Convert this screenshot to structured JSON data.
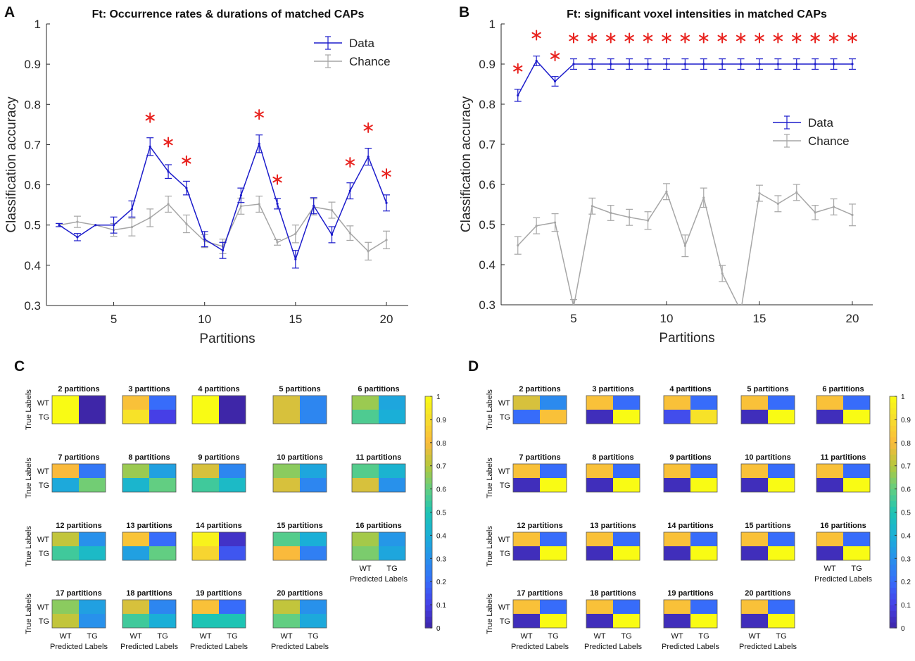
{
  "colors": {
    "data": "#1c1ccb",
    "chance": "#a6a6a6",
    "star": "#e8221e",
    "axis": "#262626"
  },
  "chart_data": [
    {
      "panel": "A",
      "type": "line",
      "title": "Ft: Occurrence rates & durations of matched CAPs",
      "xlabel": "Partitions",
      "ylabel": "Classification accuracy",
      "xlim": [
        1.3,
        21.2
      ],
      "ylim": [
        0.3,
        1.0
      ],
      "xticks": [
        5,
        10,
        15,
        20
      ],
      "yticks": [
        0.3,
        0.4,
        0.5,
        0.6,
        0.7,
        0.8,
        0.9,
        1
      ],
      "ytick_labels": [
        "0.3",
        "0.4",
        "0.5",
        "0.6",
        "0.7",
        "0.8",
        "0.9",
        "1"
      ],
      "legend_position": "top-right",
      "x": [
        2,
        3,
        4,
        5,
        6,
        7,
        8,
        9,
        10,
        11,
        12,
        13,
        14,
        15,
        16,
        17,
        18,
        19,
        20
      ],
      "series": [
        {
          "name": "Data",
          "values": [
            0.5,
            0.47,
            0.5,
            0.5,
            0.54,
            0.695,
            0.633,
            0.592,
            0.465,
            0.437,
            0.574,
            0.702,
            0.553,
            0.415,
            0.548,
            0.476,
            0.585,
            0.67,
            0.555
          ],
          "errors": [
            0.004,
            0.009,
            0.0,
            0.02,
            0.02,
            0.022,
            0.017,
            0.017,
            0.019,
            0.02,
            0.018,
            0.022,
            0.013,
            0.022,
            0.02,
            0.02,
            0.02,
            0.021,
            0.02
          ]
        },
        {
          "name": "Chance",
          "values": [
            0.5,
            0.508,
            0.5,
            0.488,
            0.495,
            0.518,
            0.552,
            0.503,
            0.46,
            0.447,
            0.547,
            0.552,
            0.457,
            0.478,
            0.545,
            0.537,
            0.48,
            0.435,
            0.463
          ],
          "errors": [
            0.004,
            0.014,
            0.0,
            0.016,
            0.022,
            0.022,
            0.02,
            0.022,
            0.016,
            0.018,
            0.02,
            0.02,
            0.007,
            0.022,
            0.02,
            0.02,
            0.018,
            0.022,
            0.022
          ]
        }
      ],
      "significance_stars": [
        {
          "x": 7,
          "y": 0.767
        },
        {
          "x": 8,
          "y": 0.706
        },
        {
          "x": 9,
          "y": 0.66
        },
        {
          "x": 13,
          "y": 0.775
        },
        {
          "x": 14,
          "y": 0.613
        },
        {
          "x": 18,
          "y": 0.656
        },
        {
          "x": 19,
          "y": 0.742
        },
        {
          "x": 20,
          "y": 0.628
        }
      ]
    },
    {
      "panel": "B",
      "type": "line",
      "title": "Ft: significant voxel intensities in matched CAPs",
      "xlabel": "Partitions",
      "ylabel": "Classification accuracy",
      "xlim": [
        1.1,
        21.1
      ],
      "ylim": [
        0.3,
        1.0
      ],
      "xticks": [
        5,
        10,
        15,
        20
      ],
      "yticks": [
        0.3,
        0.4,
        0.5,
        0.6,
        0.7,
        0.8,
        0.9,
        1
      ],
      "ytick_labels": [
        "0.3",
        "0.4",
        "0.5",
        "0.6",
        "0.7",
        "0.8",
        "0.9",
        "1"
      ],
      "legend_position": "center-right",
      "x": [
        2,
        3,
        4,
        5,
        6,
        7,
        8,
        9,
        10,
        11,
        12,
        13,
        14,
        15,
        16,
        17,
        18,
        19,
        20
      ],
      "series": [
        {
          "name": "Data",
          "values": [
            0.822,
            0.908,
            0.857,
            0.9,
            0.9,
            0.9,
            0.9,
            0.9,
            0.9,
            0.9,
            0.9,
            0.9,
            0.9,
            0.9,
            0.9,
            0.9,
            0.9,
            0.9,
            0.9
          ],
          "errors": [
            0.015,
            0.012,
            0.012,
            0.013,
            0.013,
            0.013,
            0.013,
            0.013,
            0.013,
            0.013,
            0.013,
            0.013,
            0.013,
            0.013,
            0.013,
            0.013,
            0.013,
            0.013,
            0.013
          ]
        },
        {
          "name": "Chance",
          "values": [
            0.448,
            0.497,
            0.505,
            0.295,
            0.546,
            0.529,
            0.518,
            0.51,
            0.582,
            0.447,
            0.567,
            0.378,
            0.285,
            0.578,
            0.552,
            0.58,
            0.53,
            0.544,
            0.524
          ],
          "errors": [
            0.022,
            0.02,
            0.022,
            0.018,
            0.02,
            0.019,
            0.02,
            0.022,
            0.02,
            0.027,
            0.024,
            0.02,
            0.0,
            0.02,
            0.02,
            0.02,
            0.018,
            0.02,
            0.027
          ]
        }
      ],
      "significance_stars": [
        {
          "x": 2,
          "y": 0.889
        },
        {
          "x": 3,
          "y": 0.972
        },
        {
          "x": 4,
          "y": 0.92
        },
        {
          "x": 5,
          "y": 0.965
        },
        {
          "x": 6,
          "y": 0.965
        },
        {
          "x": 7,
          "y": 0.965
        },
        {
          "x": 8,
          "y": 0.965
        },
        {
          "x": 9,
          "y": 0.965
        },
        {
          "x": 10,
          "y": 0.965
        },
        {
          "x": 11,
          "y": 0.965
        },
        {
          "x": 12,
          "y": 0.965
        },
        {
          "x": 13,
          "y": 0.965
        },
        {
          "x": 14,
          "y": 0.965
        },
        {
          "x": 15,
          "y": 0.965
        },
        {
          "x": 16,
          "y": 0.965
        },
        {
          "x": 17,
          "y": 0.965
        },
        {
          "x": 18,
          "y": 0.965
        },
        {
          "x": 19,
          "y": 0.965
        },
        {
          "x": 20,
          "y": 0.965
        }
      ]
    },
    {
      "panel": "C",
      "type": "heatmap",
      "row_label": "True Labels",
      "col_label": "Predicted Labels",
      "rows": [
        "WT",
        "TG"
      ],
      "cols": [
        "WT",
        "TG"
      ],
      "colorbar": {
        "min": 0,
        "max": 1,
        "ticks": [
          0,
          0.1,
          0.2,
          0.3,
          0.4,
          0.5,
          0.6,
          0.7,
          0.8,
          0.9,
          1
        ],
        "tick_labels": [
          "0",
          "0.1",
          "0.2",
          "0.3",
          "0.4",
          "0.5",
          "0.6",
          "0.7",
          "0.8",
          "0.9",
          "1"
        ]
      },
      "matrices": [
        {
          "title": "2 partitions",
          "values": [
            [
              1.0,
              0.0
            ],
            [
              1.0,
              0.0
            ]
          ]
        },
        {
          "title": "3 partitions",
          "values": [
            [
              0.82,
              0.2
            ],
            [
              0.92,
              0.1
            ]
          ]
        },
        {
          "title": "4 partitions",
          "values": [
            [
              1.0,
              0.0
            ],
            [
              1.0,
              0.0
            ]
          ]
        },
        {
          "title": "5 partitions",
          "values": [
            [
              0.75,
              0.27
            ],
            [
              0.75,
              0.27
            ]
          ]
        },
        {
          "title": "6 partitions",
          "values": [
            [
              0.67,
              0.37
            ],
            [
              0.57,
              0.4
            ]
          ]
        },
        {
          "title": "7 partitions",
          "values": [
            [
              0.8,
              0.23
            ],
            [
              0.38,
              0.62
            ]
          ]
        },
        {
          "title": "8 partitions",
          "values": [
            [
              0.67,
              0.35
            ],
            [
              0.43,
              0.6
            ]
          ]
        },
        {
          "title": "9 partitions",
          "values": [
            [
              0.75,
              0.27
            ],
            [
              0.55,
              0.45
            ]
          ]
        },
        {
          "title": "10 partitions",
          "values": [
            [
              0.65,
              0.37
            ],
            [
              0.75,
              0.27
            ]
          ]
        },
        {
          "title": "11 partitions",
          "values": [
            [
              0.58,
              0.42
            ],
            [
              0.75,
              0.3
            ]
          ]
        },
        {
          "title": "12 partitions",
          "values": [
            [
              0.72,
              0.3
            ],
            [
              0.55,
              0.45
            ]
          ]
        },
        {
          "title": "13 partitions",
          "values": [
            [
              0.83,
              0.2
            ],
            [
              0.35,
              0.6
            ]
          ]
        },
        {
          "title": "14 partitions",
          "values": [
            [
              0.97,
              0.05
            ],
            [
              0.88,
              0.15
            ]
          ]
        },
        {
          "title": "15 partitions",
          "values": [
            [
              0.58,
              0.4
            ],
            [
              0.8,
              0.25
            ]
          ]
        },
        {
          "title": "16 partitions",
          "values": [
            [
              0.68,
              0.32
            ],
            [
              0.63,
              0.37
            ]
          ]
        },
        {
          "title": "17 partitions",
          "values": [
            [
              0.65,
              0.35
            ],
            [
              0.72,
              0.3
            ]
          ]
        },
        {
          "title": "18 partitions",
          "values": [
            [
              0.75,
              0.27
            ],
            [
              0.55,
              0.4
            ]
          ]
        },
        {
          "title": "19 partitions",
          "values": [
            [
              0.82,
              0.2
            ],
            [
              0.5,
              0.5
            ]
          ]
        },
        {
          "title": "20 partitions",
          "values": [
            [
              0.72,
              0.3
            ],
            [
              0.6,
              0.38
            ]
          ]
        }
      ]
    },
    {
      "panel": "D",
      "type": "heatmap",
      "row_label": "True Labels",
      "col_label": "Predicted Labels",
      "rows": [
        "WT",
        "TG"
      ],
      "cols": [
        "WT",
        "TG"
      ],
      "colorbar": {
        "min": 0,
        "max": 1,
        "ticks": [
          0,
          0.1,
          0.2,
          0.3,
          0.4,
          0.5,
          0.6,
          0.7,
          0.8,
          0.9,
          1
        ],
        "tick_labels": [
          "0",
          "0.1",
          "0.2",
          "0.3",
          "0.4",
          "0.5",
          "0.6",
          "0.7",
          "0.8",
          "0.9",
          "1"
        ]
      },
      "matrices": [
        {
          "title": "2 partitions",
          "values": [
            [
              0.75,
              0.28
            ],
            [
              0.2,
              0.82
            ]
          ]
        },
        {
          "title": "3 partitions",
          "values": [
            [
              0.82,
              0.2
            ],
            [
              0.03,
              1.0
            ]
          ]
        },
        {
          "title": "4 partitions",
          "values": [
            [
              0.82,
              0.2
            ],
            [
              0.13,
              0.92
            ]
          ]
        },
        {
          "title": "5 partitions",
          "values": [
            [
              0.82,
              0.2
            ],
            [
              0.03,
              1.0
            ]
          ]
        },
        {
          "title": "6 partitions",
          "values": [
            [
              0.82,
              0.2
            ],
            [
              0.03,
              1.0
            ]
          ]
        },
        {
          "title": "7 partitions",
          "values": [
            [
              0.82,
              0.2
            ],
            [
              0.03,
              1.0
            ]
          ]
        },
        {
          "title": "8 partitions",
          "values": [
            [
              0.82,
              0.2
            ],
            [
              0.03,
              1.0
            ]
          ]
        },
        {
          "title": "9 partitions",
          "values": [
            [
              0.82,
              0.2
            ],
            [
              0.03,
              1.0
            ]
          ]
        },
        {
          "title": "10 partitions",
          "values": [
            [
              0.82,
              0.2
            ],
            [
              0.03,
              1.0
            ]
          ]
        },
        {
          "title": "11 partitions",
          "values": [
            [
              0.82,
              0.2
            ],
            [
              0.03,
              1.0
            ]
          ]
        },
        {
          "title": "12 partitions",
          "values": [
            [
              0.82,
              0.2
            ],
            [
              0.03,
              1.0
            ]
          ]
        },
        {
          "title": "13 partitions",
          "values": [
            [
              0.82,
              0.2
            ],
            [
              0.03,
              1.0
            ]
          ]
        },
        {
          "title": "14 partitions",
          "values": [
            [
              0.82,
              0.2
            ],
            [
              0.03,
              1.0
            ]
          ]
        },
        {
          "title": "15 partitions",
          "values": [
            [
              0.82,
              0.2
            ],
            [
              0.03,
              1.0
            ]
          ]
        },
        {
          "title": "16 partitions",
          "values": [
            [
              0.82,
              0.2
            ],
            [
              0.03,
              1.0
            ]
          ]
        },
        {
          "title": "17 partitions",
          "values": [
            [
              0.82,
              0.2
            ],
            [
              0.03,
              1.0
            ]
          ]
        },
        {
          "title": "18 partitions",
          "values": [
            [
              0.82,
              0.2
            ],
            [
              0.03,
              1.0
            ]
          ]
        },
        {
          "title": "19 partitions",
          "values": [
            [
              0.82,
              0.2
            ],
            [
              0.03,
              1.0
            ]
          ]
        },
        {
          "title": "20 partitions",
          "values": [
            [
              0.82,
              0.2
            ],
            [
              0.03,
              1.0
            ]
          ]
        }
      ]
    }
  ]
}
